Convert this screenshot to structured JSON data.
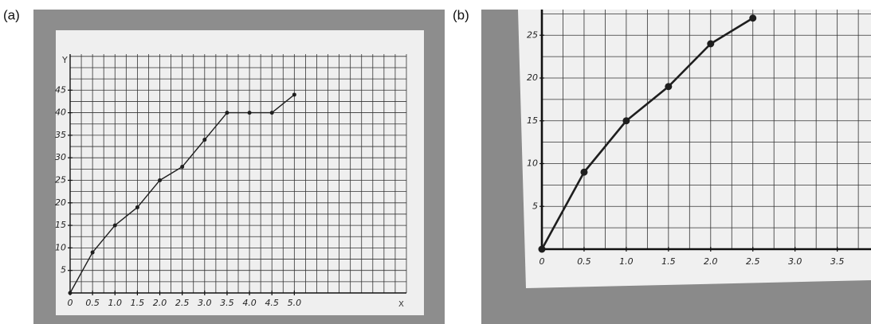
{
  "chart_data": [
    {
      "type": "line",
      "panel_label": "(a)",
      "y_label": "Y",
      "x_label": "X",
      "x": [
        0,
        0.5,
        1,
        1.5,
        2,
        2.5,
        3,
        3.5,
        4,
        4.5,
        5
      ],
      "series": [
        {
          "color": "#1e1e1e",
          "values": [
            0,
            9,
            15,
            19,
            25,
            28,
            34,
            40,
            40,
            40,
            44
          ]
        }
      ],
      "xlim": [
        0,
        7.5
      ],
      "ylim": [
        0,
        53
      ],
      "xticks": [
        0,
        0.5,
        {
          "value": 1,
          "label": "1.0"
        },
        1.5,
        {
          "value": 2,
          "label": "2.0"
        },
        2.5,
        {
          "value": 3,
          "label": "3.0"
        },
        3.5,
        {
          "value": 4,
          "label": "4.0"
        },
        4.5,
        {
          "value": 5,
          "label": "5.0"
        }
      ],
      "yticks": [
        5,
        10,
        15,
        20,
        25,
        30,
        35,
        40,
        45
      ],
      "grid": true
    },
    {
      "type": "line",
      "panel_label": "(b)",
      "x": [
        0,
        0.5,
        1,
        1.5,
        2,
        2.5
      ],
      "series": [
        {
          "color": "#1e1e1e",
          "values": [
            0,
            9,
            15,
            19,
            24,
            27
          ]
        }
      ],
      "xlim": [
        0,
        3.9
      ],
      "ylim": [
        0,
        28
      ],
      "xticks": [
        0,
        0.5,
        {
          "value": 1,
          "label": "1.0"
        },
        1.5,
        {
          "value": 2,
          "label": "2.0"
        },
        2.5,
        {
          "value": 3,
          "label": "3.0"
        },
        3.5
      ],
      "yticks": [
        5,
        10,
        15,
        20,
        25
      ],
      "grid": true
    }
  ]
}
